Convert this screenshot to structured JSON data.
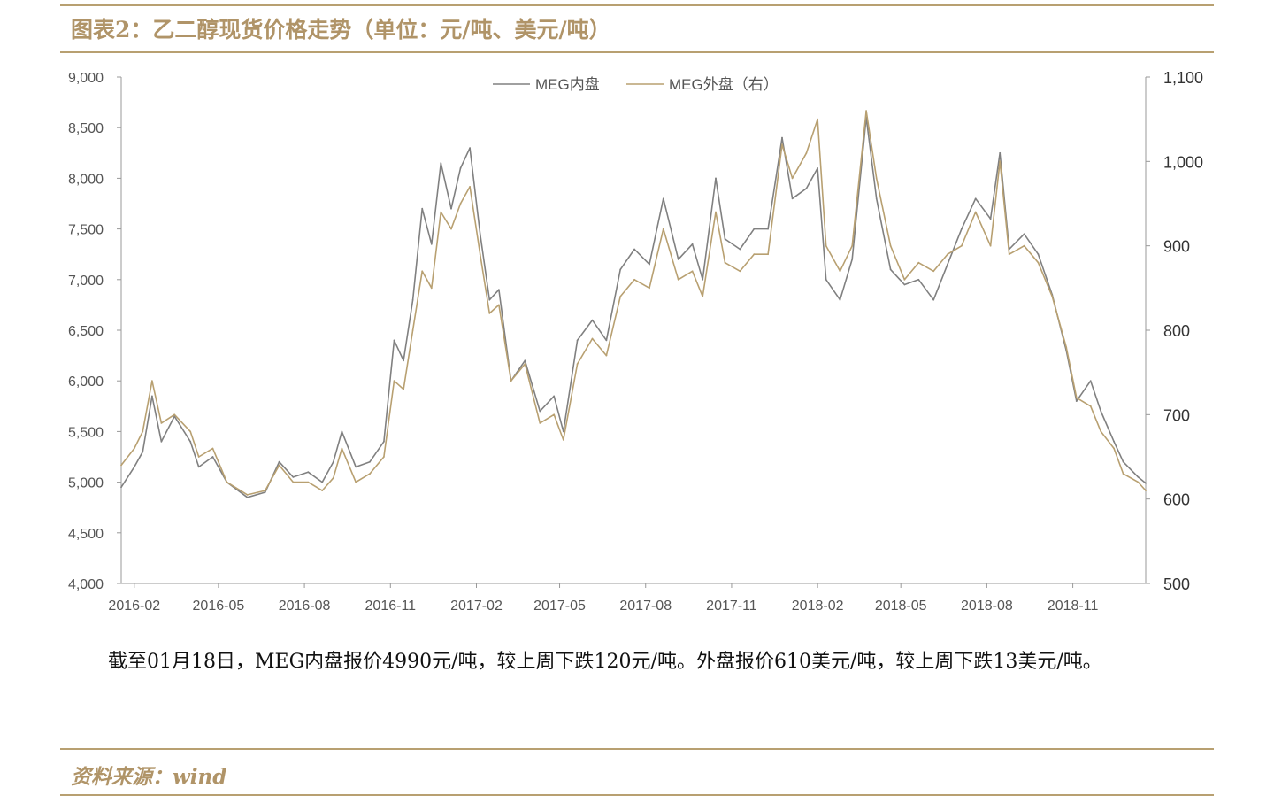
{
  "header": {
    "title": "图表2：乙二醇现货价格走势（单位：元/吨、美元/吨）"
  },
  "body": {
    "text": "截至01月18日，MEG内盘报价4990元/吨，较上周下跌120元/吨。外盘报价610美元/吨，较上周下跌13美元/吨。"
  },
  "footer": {
    "source": "资料来源：wind"
  },
  "colors": {
    "domestic": "#808080",
    "overseas": "#b8a071",
    "accent": "#b09468"
  },
  "chart_data": {
    "type": "line",
    "title": "",
    "x_ticks": [
      "2016-02",
      "2016-05",
      "2016-08",
      "2016-11",
      "2017-02",
      "2017-05",
      "2017-08",
      "2017-11",
      "2018-02",
      "2018-05",
      "2018-08",
      "2018-11"
    ],
    "y_left": {
      "min": 4000,
      "max": 9000,
      "ticks": [
        "4,000",
        "4,500",
        "5,000",
        "5,500",
        "6,000",
        "6,500",
        "7,000",
        "7,500",
        "8,000",
        "8,500",
        "9,000"
      ]
    },
    "y_right": {
      "min": 500,
      "max": 1100,
      "ticks": [
        "500",
        "600",
        "700",
        "800",
        "900",
        "1,000",
        "1,100"
      ]
    },
    "legend": {
      "position": "top-center"
    },
    "x_start": "2016-01-18",
    "x_end": "2019-01-18",
    "series": [
      {
        "name": "MEG内盘",
        "axis": "left",
        "color": "#808080",
        "points": [
          [
            "2016-01-18",
            4950
          ],
          [
            "2016-02-01",
            5150
          ],
          [
            "2016-02-10",
            5300
          ],
          [
            "2016-02-20",
            5850
          ],
          [
            "2016-03-01",
            5400
          ],
          [
            "2016-03-15",
            5650
          ],
          [
            "2016-04-01",
            5400
          ],
          [
            "2016-04-10",
            5150
          ],
          [
            "2016-04-25",
            5250
          ],
          [
            "2016-05-10",
            5000
          ],
          [
            "2016-06-01",
            4850
          ],
          [
            "2016-06-20",
            4900
          ],
          [
            "2016-07-05",
            5200
          ],
          [
            "2016-07-20",
            5050
          ],
          [
            "2016-08-05",
            5100
          ],
          [
            "2016-08-20",
            5000
          ],
          [
            "2016-09-01",
            5200
          ],
          [
            "2016-09-10",
            5500
          ],
          [
            "2016-09-25",
            5150
          ],
          [
            "2016-10-10",
            5200
          ],
          [
            "2016-10-25",
            5400
          ],
          [
            "2016-11-05",
            6400
          ],
          [
            "2016-11-15",
            6200
          ],
          [
            "2016-11-25",
            6800
          ],
          [
            "2016-12-05",
            7700
          ],
          [
            "2016-12-15",
            7350
          ],
          [
            "2016-12-25",
            8150
          ],
          [
            "2017-01-05",
            7700
          ],
          [
            "2017-01-15",
            8100
          ],
          [
            "2017-01-25",
            8300
          ],
          [
            "2017-02-05",
            7450
          ],
          [
            "2017-02-15",
            6800
          ],
          [
            "2017-02-25",
            6900
          ],
          [
            "2017-03-10",
            6000
          ],
          [
            "2017-03-25",
            6200
          ],
          [
            "2017-04-10",
            5700
          ],
          [
            "2017-04-25",
            5850
          ],
          [
            "2017-05-05",
            5500
          ],
          [
            "2017-05-20",
            6400
          ],
          [
            "2017-06-05",
            6600
          ],
          [
            "2017-06-20",
            6400
          ],
          [
            "2017-07-05",
            7100
          ],
          [
            "2017-07-20",
            7300
          ],
          [
            "2017-08-05",
            7150
          ],
          [
            "2017-08-20",
            7800
          ],
          [
            "2017-09-05",
            7200
          ],
          [
            "2017-09-20",
            7350
          ],
          [
            "2017-10-01",
            7000
          ],
          [
            "2017-10-15",
            8000
          ],
          [
            "2017-10-25",
            7400
          ],
          [
            "2017-11-10",
            7300
          ],
          [
            "2017-11-25",
            7500
          ],
          [
            "2017-12-10",
            7500
          ],
          [
            "2017-12-25",
            8400
          ],
          [
            "2018-01-05",
            7800
          ],
          [
            "2018-01-20",
            7900
          ],
          [
            "2018-02-01",
            8100
          ],
          [
            "2018-02-10",
            7000
          ],
          [
            "2018-02-25",
            6800
          ],
          [
            "2018-03-10",
            7200
          ],
          [
            "2018-03-25",
            8600
          ],
          [
            "2018-04-05",
            7800
          ],
          [
            "2018-04-20",
            7100
          ],
          [
            "2018-05-05",
            6950
          ],
          [
            "2018-05-20",
            7000
          ],
          [
            "2018-06-05",
            6800
          ],
          [
            "2018-06-20",
            7150
          ],
          [
            "2018-07-05",
            7500
          ],
          [
            "2018-07-20",
            7800
          ],
          [
            "2018-08-05",
            7600
          ],
          [
            "2018-08-15",
            8250
          ],
          [
            "2018-08-25",
            7300
          ],
          [
            "2018-09-10",
            7450
          ],
          [
            "2018-09-25",
            7250
          ],
          [
            "2018-10-10",
            6850
          ],
          [
            "2018-10-25",
            6300
          ],
          [
            "2018-11-05",
            5800
          ],
          [
            "2018-11-20",
            6000
          ],
          [
            "2018-12-01",
            5700
          ],
          [
            "2018-12-15",
            5400
          ],
          [
            "2018-12-25",
            5200
          ],
          [
            "2019-01-10",
            5050
          ],
          [
            "2019-01-18",
            4990
          ]
        ]
      },
      {
        "name": "MEG外盘（右）",
        "axis": "right",
        "color": "#b8a071",
        "points": [
          [
            "2016-01-18",
            640
          ],
          [
            "2016-02-01",
            660
          ],
          [
            "2016-02-10",
            680
          ],
          [
            "2016-02-20",
            740
          ],
          [
            "2016-03-01",
            690
          ],
          [
            "2016-03-15",
            700
          ],
          [
            "2016-04-01",
            680
          ],
          [
            "2016-04-10",
            650
          ],
          [
            "2016-04-25",
            660
          ],
          [
            "2016-05-10",
            620
          ],
          [
            "2016-06-01",
            605
          ],
          [
            "2016-06-20",
            610
          ],
          [
            "2016-07-05",
            640
          ],
          [
            "2016-07-20",
            620
          ],
          [
            "2016-08-05",
            620
          ],
          [
            "2016-08-20",
            610
          ],
          [
            "2016-09-01",
            625
          ],
          [
            "2016-09-10",
            660
          ],
          [
            "2016-09-25",
            620
          ],
          [
            "2016-10-10",
            630
          ],
          [
            "2016-10-25",
            650
          ],
          [
            "2016-11-05",
            740
          ],
          [
            "2016-11-15",
            730
          ],
          [
            "2016-11-25",
            800
          ],
          [
            "2016-12-05",
            870
          ],
          [
            "2016-12-15",
            850
          ],
          [
            "2016-12-25",
            940
          ],
          [
            "2017-01-05",
            920
          ],
          [
            "2017-01-15",
            950
          ],
          [
            "2017-01-25",
            970
          ],
          [
            "2017-02-05",
            890
          ],
          [
            "2017-02-15",
            820
          ],
          [
            "2017-02-25",
            830
          ],
          [
            "2017-03-10",
            740
          ],
          [
            "2017-03-25",
            760
          ],
          [
            "2017-04-10",
            690
          ],
          [
            "2017-04-25",
            700
          ],
          [
            "2017-05-05",
            670
          ],
          [
            "2017-05-20",
            760
          ],
          [
            "2017-06-05",
            790
          ],
          [
            "2017-06-20",
            770
          ],
          [
            "2017-07-05",
            840
          ],
          [
            "2017-07-20",
            860
          ],
          [
            "2017-08-05",
            850
          ],
          [
            "2017-08-20",
            920
          ],
          [
            "2017-09-05",
            860
          ],
          [
            "2017-09-20",
            870
          ],
          [
            "2017-10-01",
            840
          ],
          [
            "2017-10-15",
            940
          ],
          [
            "2017-10-25",
            880
          ],
          [
            "2017-11-10",
            870
          ],
          [
            "2017-11-25",
            890
          ],
          [
            "2017-12-10",
            890
          ],
          [
            "2017-12-25",
            1020
          ],
          [
            "2018-01-05",
            980
          ],
          [
            "2018-01-20",
            1010
          ],
          [
            "2018-02-01",
            1050
          ],
          [
            "2018-02-10",
            900
          ],
          [
            "2018-02-25",
            870
          ],
          [
            "2018-03-10",
            900
          ],
          [
            "2018-03-25",
            1060
          ],
          [
            "2018-04-05",
            980
          ],
          [
            "2018-04-20",
            900
          ],
          [
            "2018-05-05",
            860
          ],
          [
            "2018-05-20",
            880
          ],
          [
            "2018-06-05",
            870
          ],
          [
            "2018-06-20",
            890
          ],
          [
            "2018-07-05",
            900
          ],
          [
            "2018-07-20",
            940
          ],
          [
            "2018-08-05",
            900
          ],
          [
            "2018-08-15",
            1000
          ],
          [
            "2018-08-25",
            890
          ],
          [
            "2018-09-10",
            900
          ],
          [
            "2018-09-25",
            880
          ],
          [
            "2018-10-10",
            840
          ],
          [
            "2018-10-25",
            780
          ],
          [
            "2018-11-05",
            720
          ],
          [
            "2018-11-20",
            710
          ],
          [
            "2018-12-01",
            680
          ],
          [
            "2018-12-15",
            660
          ],
          [
            "2018-12-25",
            630
          ],
          [
            "2019-01-10",
            620
          ],
          [
            "2019-01-18",
            610
          ]
        ]
      }
    ]
  }
}
